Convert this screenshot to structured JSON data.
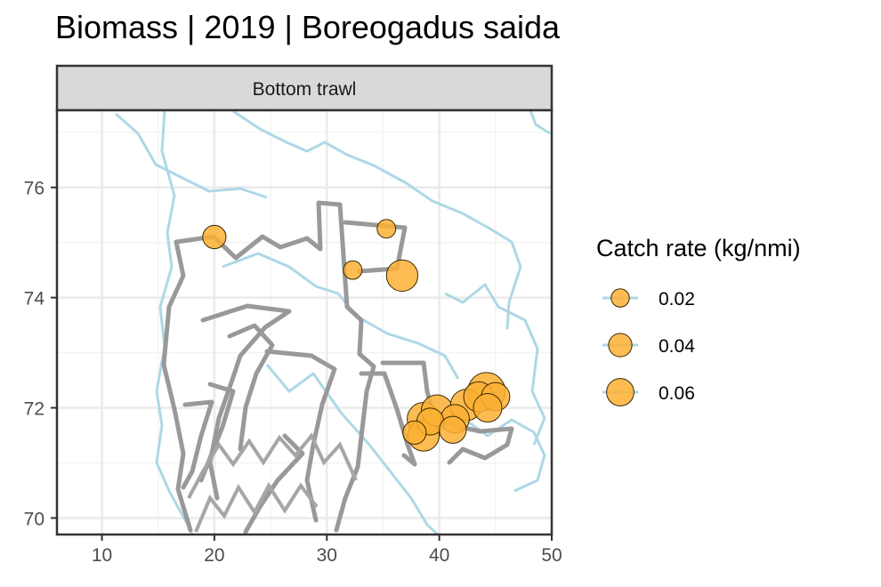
{
  "title": "Biomass | 2019 | Boreogadus saida",
  "chart_data": {
    "type": "scatter",
    "title": "Biomass | 2019 | Boreogadus saida",
    "facet": "Bottom trawl",
    "xlabel": "",
    "ylabel": "",
    "xlim": [
      6,
      50
    ],
    "ylim": [
      69.7,
      77.4
    ],
    "x_ticks": [
      10,
      20,
      30,
      40,
      50
    ],
    "y_ticks": [
      70,
      72,
      74,
      76
    ],
    "grid": true,
    "legend_position": "right",
    "size_legend": {
      "title": "Catch rate (kg/nmi)",
      "values": [
        0.02,
        0.04,
        0.06
      ],
      "labels": [
        "0.02",
        "0.04",
        "0.06"
      ]
    },
    "colors": {
      "point_fill": "#FBB034",
      "point_stroke": "#3a2a00",
      "coastline": "#ADD8E6",
      "strata": "#999999",
      "strip_bg": "#D9D9D9"
    },
    "points": [
      {
        "lon": 20.0,
        "lat": 75.1,
        "catch": 0.02
      },
      {
        "lon": 35.3,
        "lat": 75.25,
        "catch": 0.01
      },
      {
        "lon": 32.3,
        "lat": 74.5,
        "catch": 0.01
      },
      {
        "lon": 36.7,
        "lat": 74.4,
        "catch": 0.045
      },
      {
        "lon": 37.8,
        "lat": 71.55,
        "catch": 0.02
      },
      {
        "lon": 38.6,
        "lat": 71.5,
        "catch": 0.045
      },
      {
        "lon": 38.6,
        "lat": 71.8,
        "catch": 0.05
      },
      {
        "lon": 39.2,
        "lat": 71.75,
        "catch": 0.03
      },
      {
        "lon": 39.8,
        "lat": 71.95,
        "catch": 0.045
      },
      {
        "lon": 41.2,
        "lat": 71.6,
        "catch": 0.03
      },
      {
        "lon": 41.4,
        "lat": 71.8,
        "catch": 0.035
      },
      {
        "lon": 42.4,
        "lat": 72.05,
        "catch": 0.045
      },
      {
        "lon": 43.5,
        "lat": 72.2,
        "catch": 0.04
      },
      {
        "lon": 44.2,
        "lat": 72.3,
        "catch": 0.07
      },
      {
        "lon": 45.0,
        "lat": 72.2,
        "catch": 0.035
      },
      {
        "lon": 44.3,
        "lat": 72.0,
        "catch": 0.035
      }
    ]
  }
}
